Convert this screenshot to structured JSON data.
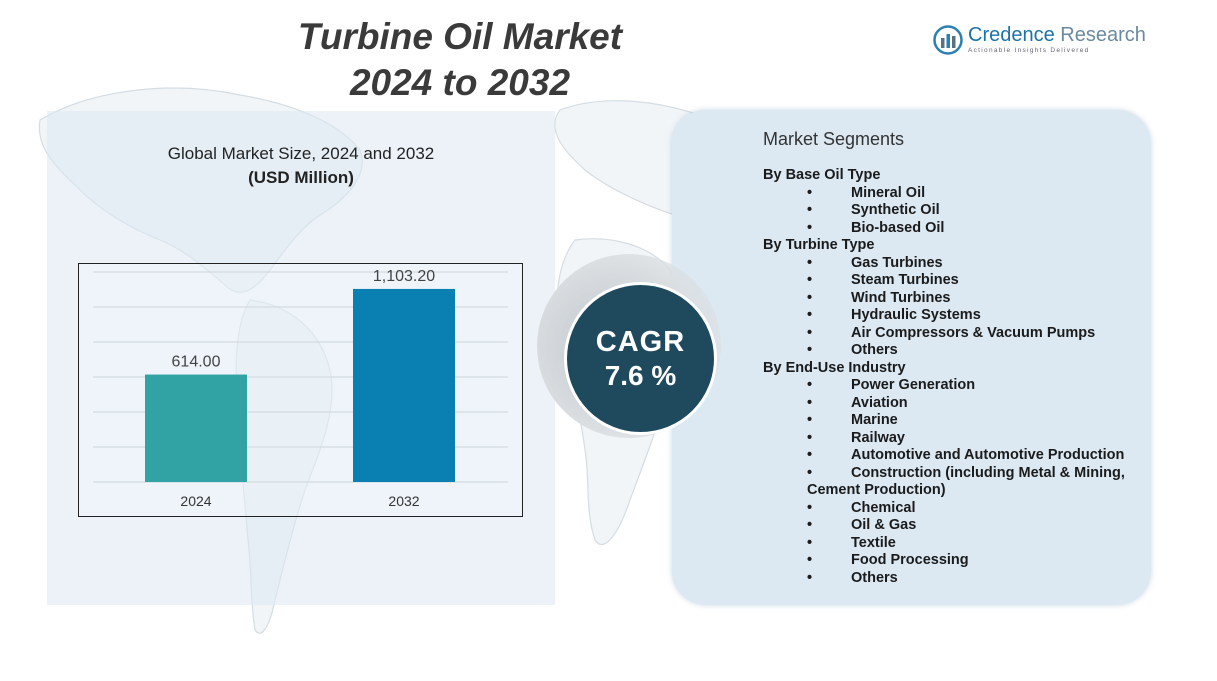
{
  "header": {
    "title_line1": "Turbine Oil Market",
    "title_line2": "2024 to 2032"
  },
  "logo": {
    "name_main": "Credence",
    "name_second": " Research",
    "tagline": "Actionable Insights Delivered"
  },
  "chart_data": {
    "type": "bar",
    "title": "Global Market Size,  2024 and 2032",
    "subtitle": "(USD Million)",
    "categories": [
      "2024",
      "2032"
    ],
    "values": [
      614.0,
      1103.2
    ],
    "value_labels": [
      "614.00",
      "1,103.20"
    ],
    "colors": [
      "#31a3a5",
      "#0a7fb2"
    ],
    "ylim": [
      0,
      1200
    ],
    "grid": true
  },
  "cagr": {
    "label": "CAGR",
    "value": "7.6 %",
    "color": "#1f4a5e"
  },
  "segments": {
    "title": "Market Segments",
    "groups": [
      {
        "name": "By Base Oil Type",
        "items": [
          "Mineral Oil",
          "Synthetic  Oil",
          "Bio-based Oil"
        ]
      },
      {
        "name": "By Turbine Type",
        "items": [
          "Gas Turbines",
          "Steam Turbines",
          "Wind Turbines",
          "Hydraulic Systems",
          "Air Compressors  & Vacuum Pumps",
          "Others"
        ]
      },
      {
        "name": "By End-Use Industry",
        "items": [
          "Power Generation",
          "Aviation",
          "Marine",
          "Railway",
          "Automotive and Automotive Production",
          "Construction  (including Metal & Mining,",
          "Chemical",
          "Oil & Gas",
          "Textile",
          "Food Processing",
          "Others"
        ],
        "continuation": "Cement Production)"
      }
    ]
  }
}
